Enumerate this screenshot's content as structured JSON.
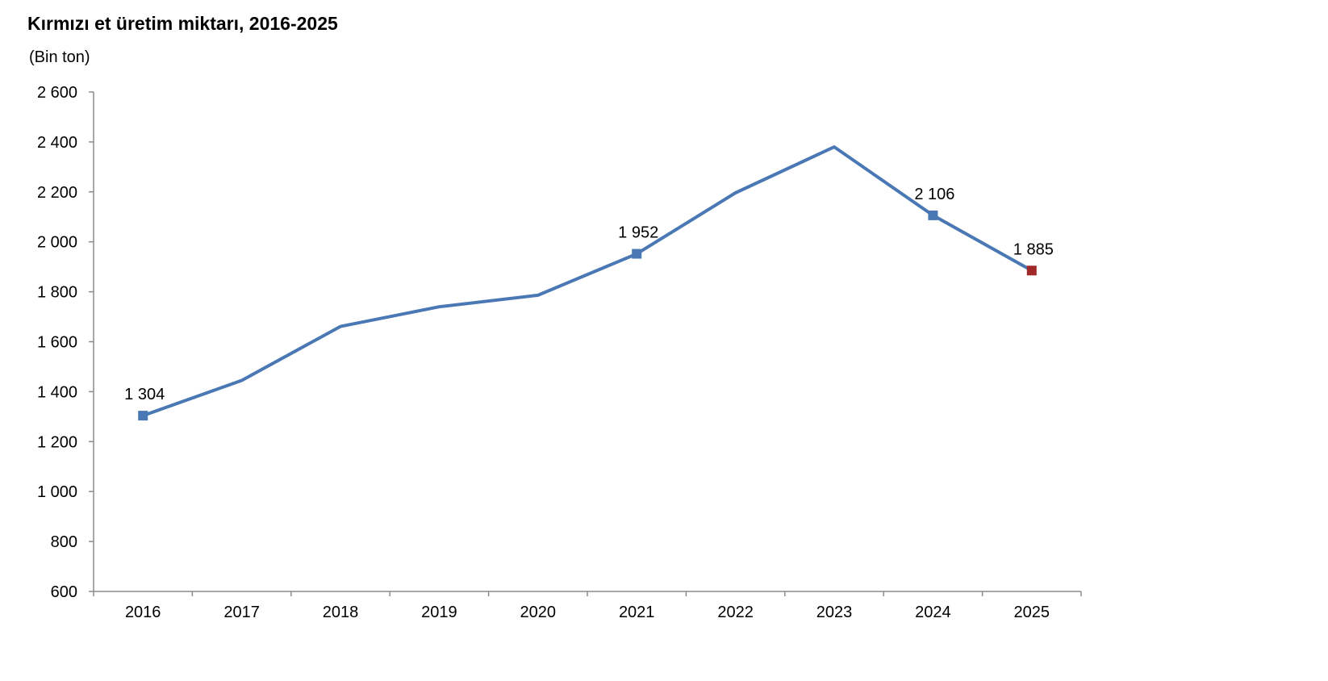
{
  "chart_data": {
    "type": "line",
    "title": "Kırmızı et üretim miktarı, 2016-2025",
    "ylabel": "(Bin ton)",
    "xlabel": "",
    "categories": [
      "2016",
      "2017",
      "2018",
      "2019",
      "2020",
      "2021",
      "2022",
      "2023",
      "2024",
      "2025"
    ],
    "series": [
      {
        "values": [
          1304,
          1445,
          1661,
          1740,
          1786,
          1952,
          2196,
          2380,
          2106,
          1885
        ],
        "color": "#4a78b4"
      }
    ],
    "ylim": [
      600,
      2600
    ],
    "yticks": [
      600,
      800,
      1000,
      1200,
      1400,
      1600,
      1800,
      2000,
      2200,
      2400,
      2600
    ],
    "ytick_labels": [
      "600",
      "800",
      "1 000",
      "1 200",
      "1 400",
      "1 600",
      "1 800",
      "2 000",
      "2 200",
      "2 400",
      "2 600"
    ],
    "markers": [
      {
        "index": 0,
        "color": "#4a78b4"
      },
      {
        "index": 5,
        "color": "#4a78b4"
      },
      {
        "index": 8,
        "color": "#4a78b4"
      },
      {
        "index": 9,
        "color": "#a02828"
      }
    ],
    "data_labels": [
      {
        "index": 0,
        "text": "1 304"
      },
      {
        "index": 5,
        "text": "1 952"
      },
      {
        "index": 8,
        "text": "2 106"
      },
      {
        "index": 9,
        "text": "1 885"
      }
    ],
    "grid": false,
    "legend": "none",
    "axis_color": "#8c8c8c"
  }
}
